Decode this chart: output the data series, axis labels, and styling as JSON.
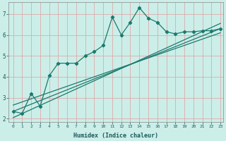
{
  "xlabel": "Humidex (Indice chaleur)",
  "ylabel": "",
  "bg_color": "#cceee8",
  "grid_color": "#ddaaaa",
  "line_color": "#1a7a6e",
  "xlim": [
    -0.5,
    23.3
  ],
  "ylim": [
    1.85,
    7.55
  ],
  "xticks": [
    0,
    1,
    2,
    3,
    4,
    5,
    6,
    7,
    8,
    9,
    10,
    11,
    12,
    13,
    14,
    15,
    16,
    17,
    18,
    19,
    20,
    21,
    22,
    23
  ],
  "yticks": [
    2,
    3,
    4,
    5,
    6,
    7
  ],
  "main_x": [
    0,
    1,
    2,
    3,
    4,
    5,
    6,
    7,
    8,
    9,
    10,
    11,
    12,
    13,
    14,
    15,
    16,
    17,
    18,
    19,
    20,
    21,
    22,
    23
  ],
  "main_y": [
    2.35,
    2.25,
    3.2,
    2.6,
    4.05,
    4.65,
    4.65,
    4.65,
    5.0,
    5.2,
    5.5,
    6.85,
    6.0,
    6.6,
    7.3,
    6.8,
    6.6,
    6.15,
    6.05,
    6.15,
    6.15,
    6.2,
    6.2,
    6.3
  ],
  "line1_x": [
    0,
    23
  ],
  "line1_y": [
    2.35,
    6.3
  ],
  "line2_x": [
    0,
    23
  ],
  "line2_y": [
    2.05,
    6.55
  ],
  "line3_x": [
    0,
    23
  ],
  "line3_y": [
    2.65,
    6.1
  ]
}
